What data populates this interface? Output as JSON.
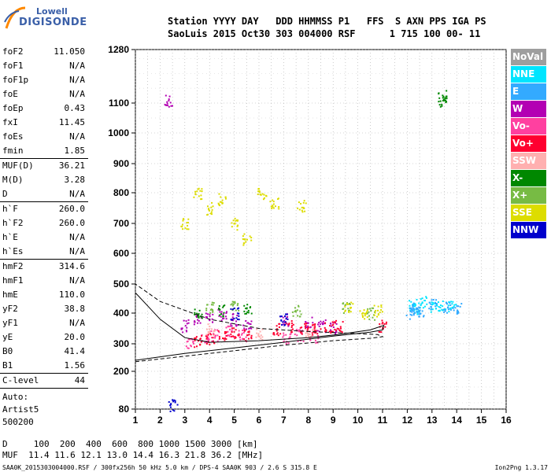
{
  "logo": {
    "line1": "Lowell",
    "line2": "DIGISONDE"
  },
  "header": {
    "row1": "Station YYYY DAY   DDD HHMMSS P1   FFS  S AXN PPS IGA PS",
    "row2": "SaoLuis 2015 Oct30 303 004000 RSF      1 715 100 00- 11"
  },
  "params": [
    {
      "name": "foF2",
      "value": "11.050"
    },
    {
      "name": "foF1",
      "value": "N/A"
    },
    {
      "name": "foF1p",
      "value": "N/A"
    },
    {
      "name": "foE",
      "value": "N/A"
    },
    {
      "name": "foEp",
      "value": "0.43"
    },
    {
      "name": "fxI",
      "value": "11.45"
    },
    {
      "name": "foEs",
      "value": "N/A"
    },
    {
      "name": "fmin",
      "value": "1.85"
    },
    {
      "name": "MUF(D)",
      "value": "36.21"
    },
    {
      "name": "M(D)",
      "value": "3.28"
    },
    {
      "name": "D",
      "value": "N/A"
    },
    {
      "name": "h`F",
      "value": "260.0"
    },
    {
      "name": "h`F2",
      "value": "260.0"
    },
    {
      "name": "h`E",
      "value": "N/A"
    },
    {
      "name": "h`Es",
      "value": "N/A"
    },
    {
      "name": "hmF2",
      "value": "314.6"
    },
    {
      "name": "hmF1",
      "value": "N/A"
    },
    {
      "name": "hmE",
      "value": "110.0"
    },
    {
      "name": "yF2",
      "value": "38.8"
    },
    {
      "name": "yF1",
      "value": "N/A"
    },
    {
      "name": "yE",
      "value": "20.0"
    },
    {
      "name": "B0",
      "value": "41.4"
    },
    {
      "name": "B1",
      "value": "1.56"
    },
    {
      "name": "C-level",
      "value": "44"
    }
  ],
  "auto": [
    "Auto:",
    "Artist5",
    "500200"
  ],
  "legend": [
    {
      "label": "NoVal",
      "color": "#9e9e9e"
    },
    {
      "label": "NNE",
      "color": "#00e5ff"
    },
    {
      "label": "E",
      "color": "#33aaff"
    },
    {
      "label": "W",
      "color": "#b300b3"
    },
    {
      "label": "Vo-",
      "color": "#ff40a0"
    },
    {
      "label": "Vo+",
      "color": "#ff0030"
    },
    {
      "label": "SSW",
      "color": "#ffb0b0"
    },
    {
      "label": "X-",
      "color": "#008800"
    },
    {
      "label": "X+",
      "color": "#77bb44"
    },
    {
      "label": "SSE",
      "color": "#dddd00"
    },
    {
      "label": "NNW",
      "color": "#0000cc"
    }
  ],
  "footer": {
    "row1": "D     100  200  400  600  800 1000 1500 3000 [km]",
    "row2": "MUF  11.4 11.6 12.1 13.0 14.4 16.3 21.8 36.2 [MHz]",
    "row3": "SAA0K_2015303004000.RSF / 300fx256h 50 kHz 5.0 km / DPS-4 SAA0K 903 / 2.6 S 315.8 E",
    "version": "Ion2Png 1.3.17"
  },
  "chart_data": {
    "type": "scatter",
    "title": "",
    "xlabel": "",
    "ylabel": "",
    "xlim": [
      1,
      16
    ],
    "ylim": [
      80,
      1280
    ],
    "yscale": "nonlinear",
    "x_ticks": [
      1,
      2,
      3,
      4,
      5,
      6,
      7,
      8,
      9,
      10,
      11,
      12,
      13,
      14,
      15,
      16
    ],
    "y_ticks": [
      80,
      200,
      300,
      400,
      500,
      600,
      700,
      800,
      900,
      1000,
      1100,
      1280
    ],
    "grid": true,
    "legend_placement": "right",
    "series": [
      {
        "name": "NoVal",
        "values": []
      },
      {
        "name": "NNE",
        "points": [
          [
            12.2,
            430
          ],
          [
            12.4,
            415
          ],
          [
            12.6,
            440
          ],
          [
            13.1,
            420
          ],
          [
            13.4,
            430
          ],
          [
            13.8,
            425
          ]
        ]
      },
      {
        "name": "E",
        "points": [
          [
            12.1,
            400
          ],
          [
            12.3,
            420
          ],
          [
            12.5,
            410
          ],
          [
            13.0,
            430
          ],
          [
            13.6,
            420
          ],
          [
            14.0,
            420
          ]
        ]
      },
      {
        "name": "W",
        "points": [
          [
            3.0,
            360
          ],
          [
            3.5,
            380
          ],
          [
            4.0,
            390
          ],
          [
            4.5,
            395
          ],
          [
            5.0,
            380
          ],
          [
            5.5,
            360
          ],
          [
            7.0,
            380
          ],
          [
            8.0,
            370
          ],
          [
            8.5,
            360
          ],
          [
            9.0,
            355
          ],
          [
            2.3,
            1110
          ]
        ]
      },
      {
        "name": "Vo-",
        "points": [
          [
            3.2,
            300
          ],
          [
            3.8,
            320
          ],
          [
            4.2,
            330
          ],
          [
            4.8,
            340
          ],
          [
            5.3,
            330
          ],
          [
            7.1,
            320
          ],
          [
            7.6,
            330
          ],
          [
            8.2,
            325
          ]
        ]
      },
      {
        "name": "Vo+",
        "points": [
          [
            3.5,
            310
          ],
          [
            4.0,
            320
          ],
          [
            4.5,
            330
          ],
          [
            5.0,
            340
          ],
          [
            5.5,
            330
          ],
          [
            6.7,
            350
          ],
          [
            7.2,
            360
          ],
          [
            7.8,
            350
          ],
          [
            8.3,
            350
          ],
          [
            8.8,
            355
          ],
          [
            9.2,
            360
          ],
          [
            11.0,
            360
          ]
        ]
      },
      {
        "name": "SSW",
        "points": [
          [
            4.0,
            350
          ],
          [
            6.0,
            330
          ],
          [
            8.0,
            340
          ]
        ]
      },
      {
        "name": "X-",
        "points": [
          [
            3.5,
            400
          ],
          [
            4.5,
            410
          ],
          [
            5.5,
            420
          ],
          [
            13.4,
            1125
          ],
          [
            13.4,
            1110
          ]
        ]
      },
      {
        "name": "X+",
        "points": [
          [
            4.0,
            420
          ],
          [
            5.0,
            430
          ],
          [
            7.5,
            410
          ],
          [
            9.5,
            420
          ],
          [
            10.5,
            400
          ]
        ]
      },
      {
        "name": "SSE",
        "points": [
          [
            3.0,
            700
          ],
          [
            3.5,
            800
          ],
          [
            4.0,
            750
          ],
          [
            4.5,
            780
          ],
          [
            5.0,
            700
          ],
          [
            5.5,
            650
          ],
          [
            6.1,
            800
          ],
          [
            6.6,
            770
          ],
          [
            7.7,
            760
          ],
          [
            9.6,
            420
          ],
          [
            10.2,
            400
          ],
          [
            10.8,
            410
          ]
        ]
      },
      {
        "name": "NNW",
        "points": [
          [
            5.0,
            400
          ],
          [
            7.0,
            380
          ],
          [
            2.5,
            95
          ]
        ]
      }
    ],
    "curves": {
      "virtual_height_trace": [
        [
          1.0,
          240
        ],
        [
          3,
          265
        ],
        [
          5,
          285
        ],
        [
          7,
          305
        ],
        [
          9,
          325
        ],
        [
          10.5,
          338
        ],
        [
          11.0,
          345
        ],
        [
          11.05,
          360
        ],
        [
          10.5,
          345
        ],
        [
          9.2,
          330
        ],
        [
          8,
          320
        ],
        [
          6,
          310
        ],
        [
          4,
          305
        ],
        [
          3,
          320
        ],
        [
          2,
          380
        ],
        [
          1.0,
          470
        ]
      ],
      "profile": [
        [
          1.0,
          235
        ],
        [
          3,
          255
        ],
        [
          5,
          275
        ],
        [
          7,
          295
        ],
        [
          9,
          310
        ],
        [
          10.5,
          318
        ],
        [
          11.0,
          323
        ],
        [
          10.8,
          330
        ],
        [
          9.5,
          335
        ],
        [
          8,
          340
        ],
        [
          6,
          350
        ],
        [
          4,
          380
        ],
        [
          2,
          440
        ],
        [
          1.0,
          500
        ]
      ]
    }
  }
}
